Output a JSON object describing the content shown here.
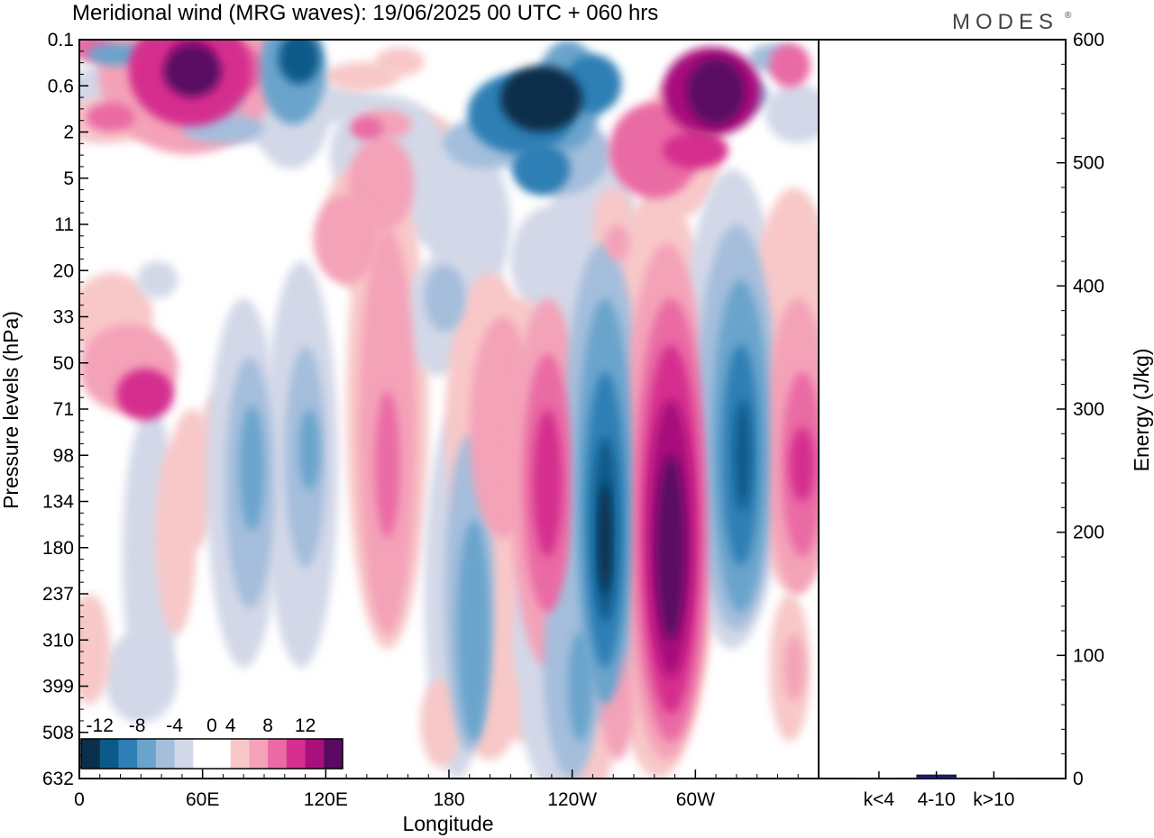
{
  "header": {
    "title": "Meridional wind (MRG waves):  19/06/2025  00 UTC  + 060 hrs",
    "brand": "MODES",
    "brand_mark": "®"
  },
  "chart_data": [
    {
      "type": "heatmap",
      "title": "Meridional wind (MRG waves):  19/06/2025  00 UTC  + 060 hrs",
      "xlabel": "Longitude",
      "ylabel": "Pressure levels (hPa)",
      "x_ticks": [
        "0",
        "60E",
        "120E",
        "180",
        "120W",
        "60W"
      ],
      "x_tick_values": [
        0,
        60,
        120,
        180,
        240,
        300
      ],
      "xlim": [
        0,
        360
      ],
      "y_ticks": [
        "0.1",
        "0.6",
        "2",
        "5",
        "11",
        "20",
        "33",
        "50",
        "71",
        "98",
        "134",
        "180",
        "237",
        "310",
        "399",
        "508",
        "632"
      ],
      "y_axis_inverted": true,
      "colorbar": {
        "labels": [
          "-12",
          "-8",
          "-4",
          "0",
          "4",
          "8",
          "12"
        ],
        "label_values": [
          -12,
          -8,
          -4,
          0,
          4,
          8,
          12
        ],
        "levels": [
          -14,
          -12,
          -10,
          -8,
          -6,
          -4,
          -2,
          2,
          4,
          6,
          8,
          10,
          12,
          14
        ],
        "colors": [
          "#0b2f4b",
          "#0c5a8a",
          "#2e7fb5",
          "#6aa4cc",
          "#a4bedc",
          "#d3d8e8",
          "#ffffff",
          "#ffffff",
          "#f8c8c8",
          "#f4a2b8",
          "#ea6aa4",
          "#d52e8e",
          "#a8117c",
          "#5a0a62"
        ],
        "placement": "bottom-left inside plot"
      },
      "features": [
        {
          "name": "easterly lower-stratosphere positive band",
          "lon": 150,
          "level": "98-399 hPa",
          "value": 8
        },
        {
          "name": "strong negative core",
          "lon": 255,
          "level": "134-310 hPa",
          "value": -14
        },
        {
          "name": "strong positive core",
          "lon": 288,
          "level": "134-310 hPa",
          "value": 14
        },
        {
          "name": "negative core",
          "lon": 322,
          "level": "134-237 hPa",
          "value": -10
        },
        {
          "name": "upper negative core",
          "lon": 220,
          "level": "0.6-5 hPa",
          "value": -14
        },
        {
          "name": "upper positive core",
          "lon": 310,
          "level": "0.6-2 hPa",
          "value": 14
        },
        {
          "name": "upper positive core",
          "lon": 60,
          "level": "2 hPa",
          "value": 12
        }
      ]
    },
    {
      "type": "bar",
      "ylabel": "Energy (J/kg)",
      "categories": [
        "k<4",
        "4-10",
        "k>10"
      ],
      "values": [
        0.5,
        3,
        0.3
      ],
      "ylim": [
        0,
        600
      ],
      "y_ticks": [
        "0",
        "100",
        "200",
        "300",
        "400",
        "500",
        "600"
      ],
      "y_tick_values": [
        0,
        100,
        200,
        300,
        400,
        500,
        600
      ],
      "axis_side": "right",
      "bar_color": "#1c1c7a"
    }
  ]
}
